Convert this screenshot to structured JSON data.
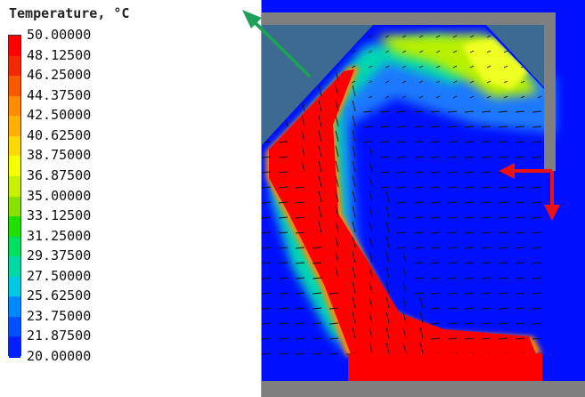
{
  "legend": {
    "title": "Temperature, °C",
    "levels": [
      {
        "label": "50.00000",
        "color": "#ff0000"
      },
      {
        "label": "48.12500",
        "color": "#f22a00"
      },
      {
        "label": "46.25000",
        "color": "#f55a00"
      },
      {
        "label": "44.37500",
        "color": "#ff8c00"
      },
      {
        "label": "42.50000",
        "color": "#ffb000"
      },
      {
        "label": "40.62500",
        "color": "#ffd800"
      },
      {
        "label": "38.75000",
        "color": "#f5ff00"
      },
      {
        "label": "36.87500",
        "color": "#c8f000"
      },
      {
        "label": "35.00000",
        "color": "#8ce000"
      },
      {
        "label": "33.12500",
        "color": "#1ee000"
      },
      {
        "label": "31.25000",
        "color": "#00e060"
      },
      {
        "label": "29.37500",
        "color": "#00d8a8"
      },
      {
        "label": "27.50000",
        "color": "#00c8e0"
      },
      {
        "label": "25.62500",
        "color": "#0088ff"
      },
      {
        "label": "23.75000",
        "color": "#0050ff"
      },
      {
        "label": "21.87500",
        "color": "#0020ff"
      },
      {
        "label": "20.00000",
        "color": "#0008f0"
      }
    ]
  },
  "colors": {
    "background_cold": "#0010ff",
    "hot": "#ff0000",
    "wall": "#7f7f7f",
    "void": "#3c6a90",
    "annotation_green": "#1fa05a",
    "annotation_red": "#ee1111"
  }
}
